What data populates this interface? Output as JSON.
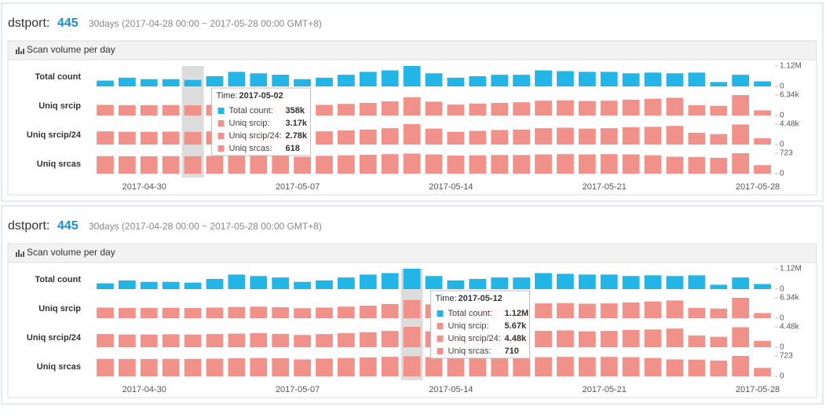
{
  "header": {
    "label": "dstport:",
    "port": "445",
    "range": "30days (2017-04-28 00:00 ~ 2017-05-28 00:00 GMT+8)"
  },
  "panel_title": "Scan volume per day",
  "chart_data": {
    "type": "bar",
    "categories": [
      null,
      null,
      "2017-04-30",
      null,
      null,
      null,
      null,
      null,
      null,
      "2017-05-07",
      null,
      null,
      null,
      null,
      null,
      null,
      "2017-05-14",
      null,
      null,
      null,
      null,
      null,
      null,
      "2017-05-21",
      null,
      null,
      null,
      null,
      null,
      null,
      "2017-05-28"
    ],
    "series": [
      {
        "name": "Total count",
        "color": "#22b5e5",
        "ylim": [
          0,
          1120000
        ],
        "yticks": [
          0,
          {
            "value": 1120000,
            "label": "1.12M"
          }
        ],
        "values": [
          320000,
          480000,
          400000,
          400000,
          358000,
          560000,
          800000,
          720000,
          640000,
          400000,
          480000,
          640000,
          800000,
          880000,
          1120000,
          720000,
          480000,
          560000,
          640000,
          640000,
          880000,
          840000,
          800000,
          800000,
          720000,
          760000,
          720000,
          760000,
          240000,
          640000,
          280000
        ]
      },
      {
        "name": "Uniq srcip",
        "color": "#f0928a",
        "ylim": [
          0,
          6340
        ],
        "yticks": [
          0,
          {
            "value": 6340,
            "label": "6.34k"
          }
        ],
        "values": [
          3300,
          3200,
          3200,
          3250,
          3170,
          3300,
          3500,
          3600,
          3400,
          3100,
          3300,
          3600,
          3900,
          4400,
          5670,
          4300,
          3400,
          3700,
          3900,
          4100,
          4600,
          4700,
          4500,
          4600,
          4900,
          5200,
          5500,
          3200,
          3000,
          6340,
          1600
        ]
      },
      {
        "name": "Uniq srcip/24",
        "color": "#f0928a",
        "ylim": [
          0,
          4480
        ],
        "yticks": [
          0,
          {
            "value": 4480,
            "label": "4.48k"
          }
        ],
        "values": [
          2900,
          2800,
          2800,
          2850,
          2780,
          2900,
          3000,
          3100,
          2950,
          2700,
          2900,
          3100,
          3300,
          3600,
          4480,
          3500,
          2800,
          3000,
          3200,
          3300,
          3600,
          3700,
          3500,
          3600,
          3800,
          3900,
          4100,
          2600,
          2300,
          4400,
          1400
        ]
      },
      {
        "name": "Uniq srcas",
        "color": "#f0928a",
        "ylim": [
          0,
          723
        ],
        "yticks": [
          0,
          723
        ],
        "values": [
          620,
          615,
          615,
          620,
          618,
          625,
          640,
          650,
          640,
          600,
          630,
          650,
          670,
          690,
          710,
          680,
          640,
          650,
          660,
          660,
          680,
          690,
          680,
          690,
          680,
          650,
          600,
          590,
          560,
          723,
          300
        ]
      }
    ]
  },
  "tooltips": [
    {
      "time_label": "Time:",
      "time": "2017-05-02",
      "items": [
        {
          "label": "Total count:",
          "value": 358000,
          "value_label": "358k"
        },
        {
          "label": "Uniq srcip:",
          "value": 3170,
          "value_label": "3.17k"
        },
        {
          "label": "Uniq srcip/24:",
          "value": 2780,
          "value_label": "2.78k"
        },
        {
          "label": "Uniq srcas:",
          "value": 618,
          "value_label": "618"
        }
      ]
    },
    {
      "time_label": "Time:",
      "time": "2017-05-12",
      "items": [
        {
          "label": "Total count:",
          "value": 1120000,
          "value_label": "1.12M"
        },
        {
          "label": "Uniq srcip:",
          "value": 5670,
          "value_label": "5.67k"
        },
        {
          "label": "Uniq srcip/24:",
          "value": 4480,
          "value_label": "4.48k"
        },
        {
          "label": "Uniq srcas:",
          "value": 710,
          "value_label": "710"
        }
      ]
    }
  ]
}
